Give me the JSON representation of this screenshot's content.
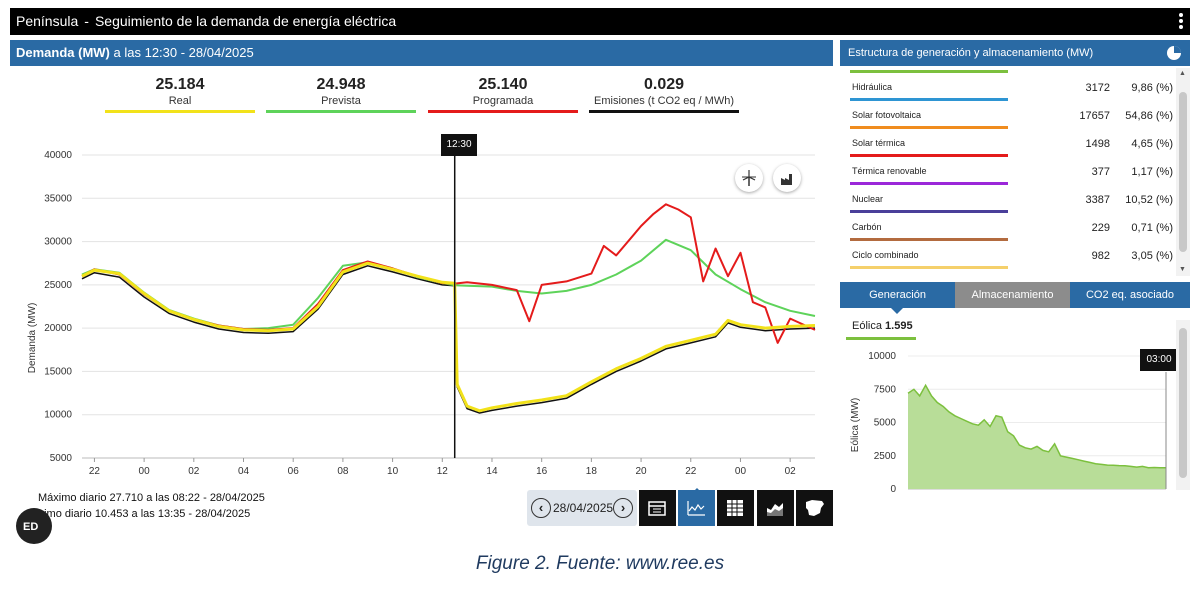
{
  "window": {
    "region": "Península",
    "separator": "-",
    "title": "Seguimiento de la demanda de energía eléctrica"
  },
  "demand_panel": {
    "header_bold": "Demanda (MW)",
    "header_rest": "a las 12:30 - 28/04/2025",
    "indicators": [
      {
        "value": "25.184",
        "label": "Real",
        "color": "#f2e21a"
      },
      {
        "value": "24.948",
        "label": "Prevista",
        "color": "#5ed35a"
      },
      {
        "value": "25.140",
        "label": "Programada",
        "color": "#e41b1b"
      },
      {
        "value": "0.029",
        "label": "Emisiones (t CO2 eq / MWh)",
        "color": "#111111"
      }
    ],
    "cursor_label": "12:30",
    "max_text": "Máximo diario 27.710 a las 08:22 - 28/04/2025",
    "min_text": "nimo diario 10.453 a las 13:35 - 28/04/2025",
    "fab_label": "ED"
  },
  "date_nav": {
    "date": "28/04/2025",
    "prev_icon": "chevron-left-icon",
    "next_icon": "chevron-right-icon"
  },
  "view_buttons": [
    {
      "name": "calendar-view-button",
      "icon": "calendar-icon",
      "active": false
    },
    {
      "name": "line-chart-view-button",
      "icon": "line-chart-icon",
      "active": true
    },
    {
      "name": "table-view-button",
      "icon": "table-icon",
      "active": false
    },
    {
      "name": "area-chart-view-button",
      "icon": "area-chart-icon",
      "active": false
    },
    {
      "name": "map-view-button",
      "icon": "spain-map-icon",
      "active": false
    }
  ],
  "chart_data": {
    "type": "line",
    "ylabel": "Demanda (MW)",
    "ylim": [
      5000,
      40000
    ],
    "yticks": [
      5000,
      10000,
      15000,
      20000,
      25000,
      30000,
      35000,
      40000
    ],
    "x_tick_labels": [
      "22",
      "00",
      "02",
      "04",
      "06",
      "08",
      "10",
      "12",
      "14",
      "16",
      "18",
      "20",
      "22",
      "00",
      "02"
    ],
    "x_tick_hours": [
      22,
      24,
      26,
      28,
      30,
      32,
      34,
      36,
      38,
      40,
      42,
      44,
      46,
      48,
      50
    ],
    "x_range_hours": [
      21.5,
      51
    ],
    "cursor_hour": 36.5,
    "grid": true,
    "series": [
      {
        "name": "Real",
        "color": "#f2e21a",
        "points": [
          [
            21.5,
            26000
          ],
          [
            22,
            26700
          ],
          [
            23,
            26300
          ],
          [
            24,
            24000
          ],
          [
            25,
            22000
          ],
          [
            26,
            21000
          ],
          [
            27,
            20200
          ],
          [
            28,
            19800
          ],
          [
            29,
            19700
          ],
          [
            30,
            19900
          ],
          [
            31,
            22500
          ],
          [
            32,
            26500
          ],
          [
            33,
            27500
          ],
          [
            34,
            26800
          ],
          [
            35,
            26000
          ],
          [
            36,
            25300
          ],
          [
            36.5,
            25184
          ],
          [
            36.6,
            13500
          ],
          [
            37,
            11000
          ],
          [
            37.5,
            10453
          ],
          [
            38,
            10800
          ],
          [
            39,
            11300
          ],
          [
            40,
            11700
          ],
          [
            41,
            12200
          ],
          [
            42,
            13800
          ],
          [
            43,
            15300
          ],
          [
            44,
            16500
          ],
          [
            45,
            17900
          ],
          [
            46,
            18600
          ],
          [
            47,
            19300
          ],
          [
            47.5,
            20900
          ],
          [
            48,
            20400
          ],
          [
            49,
            20000
          ],
          [
            50,
            20200
          ],
          [
            51,
            20300
          ]
        ]
      },
      {
        "name": "Prevista",
        "color": "#5ed35a",
        "points": [
          [
            21.5,
            26200
          ],
          [
            22,
            26800
          ],
          [
            23,
            26400
          ],
          [
            24,
            24100
          ],
          [
            25,
            22100
          ],
          [
            26,
            21100
          ],
          [
            27,
            20300
          ],
          [
            28,
            19900
          ],
          [
            29,
            20000
          ],
          [
            30,
            20400
          ],
          [
            31,
            23500
          ],
          [
            32,
            27200
          ],
          [
            33,
            27600
          ],
          [
            34,
            26900
          ],
          [
            35,
            25900
          ],
          [
            36,
            25200
          ],
          [
            36.5,
            24948
          ],
          [
            37,
            24900
          ],
          [
            38,
            24800
          ],
          [
            39,
            24300
          ],
          [
            40,
            24000
          ],
          [
            41,
            24300
          ],
          [
            42,
            25000
          ],
          [
            43,
            26200
          ],
          [
            44,
            27800
          ],
          [
            45,
            30200
          ],
          [
            46,
            29000
          ],
          [
            47,
            26200
          ],
          [
            48,
            24500
          ],
          [
            49,
            23000
          ],
          [
            50,
            22000
          ],
          [
            51,
            21400
          ]
        ]
      },
      {
        "name": "Programada",
        "color": "#e41b1b",
        "points": [
          [
            21.5,
            26000
          ],
          [
            22,
            26800
          ],
          [
            23,
            26200
          ],
          [
            24,
            23900
          ],
          [
            25,
            22000
          ],
          [
            26,
            21000
          ],
          [
            27,
            20300
          ],
          [
            28,
            19900
          ],
          [
            29,
            19800
          ],
          [
            30,
            20000
          ],
          [
            31,
            22800
          ],
          [
            32,
            26700
          ],
          [
            33,
            27700
          ],
          [
            34,
            26900
          ],
          [
            35,
            26000
          ],
          [
            36,
            25200
          ],
          [
            36.5,
            25140
          ],
          [
            37,
            25300
          ],
          [
            38,
            25000
          ],
          [
            39,
            24400
          ],
          [
            39.5,
            20800
          ],
          [
            40,
            25000
          ],
          [
            41,
            25400
          ],
          [
            42,
            26300
          ],
          [
            42.5,
            29500
          ],
          [
            43,
            28400
          ],
          [
            44,
            31800
          ],
          [
            44.5,
            33200
          ],
          [
            45,
            34300
          ],
          [
            45.5,
            33700
          ],
          [
            46,
            32800
          ],
          [
            46.5,
            25400
          ],
          [
            47,
            29200
          ],
          [
            47.5,
            26000
          ],
          [
            48,
            28700
          ],
          [
            48.5,
            23000
          ],
          [
            49,
            22400
          ],
          [
            49.5,
            18300
          ],
          [
            50,
            21100
          ],
          [
            51,
            19800
          ]
        ]
      },
      {
        "name": "Emisiones",
        "color": "#111111",
        "points": [
          [
            21.5,
            25700
          ],
          [
            22,
            26400
          ],
          [
            23,
            25900
          ],
          [
            24,
            23600
          ],
          [
            25,
            21700
          ],
          [
            26,
            20700
          ],
          [
            27,
            19900
          ],
          [
            28,
            19500
          ],
          [
            29,
            19400
          ],
          [
            30,
            19600
          ],
          [
            31,
            22200
          ],
          [
            32,
            26200
          ],
          [
            33,
            27200
          ],
          [
            34,
            26500
          ],
          [
            35,
            25700
          ],
          [
            36,
            25000
          ],
          [
            36.5,
            24900
          ],
          [
            36.6,
            13200
          ],
          [
            37,
            10700
          ],
          [
            37.5,
            10200
          ],
          [
            38,
            10500
          ],
          [
            39,
            11000
          ],
          [
            40,
            11400
          ],
          [
            41,
            11900
          ],
          [
            42,
            13500
          ],
          [
            43,
            15000
          ],
          [
            44,
            16200
          ],
          [
            45,
            17600
          ],
          [
            46,
            18300
          ],
          [
            47,
            19000
          ],
          [
            47.5,
            20600
          ],
          [
            48,
            20100
          ],
          [
            49,
            19700
          ],
          [
            50,
            19900
          ],
          [
            51,
            20000
          ]
        ]
      }
    ]
  },
  "generation_panel": {
    "header": "Estructura de generación y almacenamiento (MW)",
    "header_icon": "pie-chart-icon",
    "rows": [
      {
        "name": "Hidráulica",
        "mw": "3172",
        "pct": "9,86 (%)",
        "color": "#2e95d3"
      },
      {
        "name": "Solar fotovoltaica",
        "mw": "17657",
        "pct": "54,86 (%)",
        "color": "#f08c1e"
      },
      {
        "name": "Solar térmica",
        "mw": "1498",
        "pct": "4,65 (%)",
        "color": "#e41b1b"
      },
      {
        "name": "Térmica renovable",
        "mw": "377",
        "pct": "1,17 (%)",
        "color": "#9b27d9"
      },
      {
        "name": "Nuclear",
        "mw": "3387",
        "pct": "10,52 (%)",
        "color": "#4a3f9a"
      },
      {
        "name": "Carbón",
        "mw": "229",
        "pct": "0,71 (%)",
        "color": "#b36b3f"
      },
      {
        "name": "Ciclo combinado",
        "mw": "982",
        "pct": "3,05 (%)",
        "color": "#f5d06b"
      }
    ],
    "tabs": [
      {
        "label": "Generación"
      },
      {
        "label": "Almacenamiento"
      },
      {
        "label": "CO2 eq. asociado"
      }
    ],
    "selected_label": "Eólica",
    "selected_value": "1.595",
    "mini_chart": {
      "type": "area",
      "ylabel": "Eólica (MW)",
      "ylim": [
        0,
        10000
      ],
      "yticks": [
        "10000",
        "7500",
        "5000",
        "2500",
        "0"
      ],
      "cursor_label": "03:00",
      "color": "#7cc03e",
      "fill": "#b8dd98",
      "values": [
        7200,
        7500,
        7000,
        7800,
        7000,
        6500,
        6200,
        5800,
        5500,
        5300,
        5100,
        4900,
        4800,
        5200,
        4700,
        5500,
        5400,
        4300,
        4000,
        3300,
        3100,
        3000,
        3200,
        2900,
        2800,
        3400,
        2500,
        2400,
        2300,
        2200,
        2100,
        2000,
        1900,
        1850,
        1800,
        1780,
        1760,
        1750,
        1700,
        1650,
        1700,
        1600,
        1620,
        1600,
        1595
      ]
    }
  },
  "caption": "Figure 2. Fuente: www.ree.es"
}
